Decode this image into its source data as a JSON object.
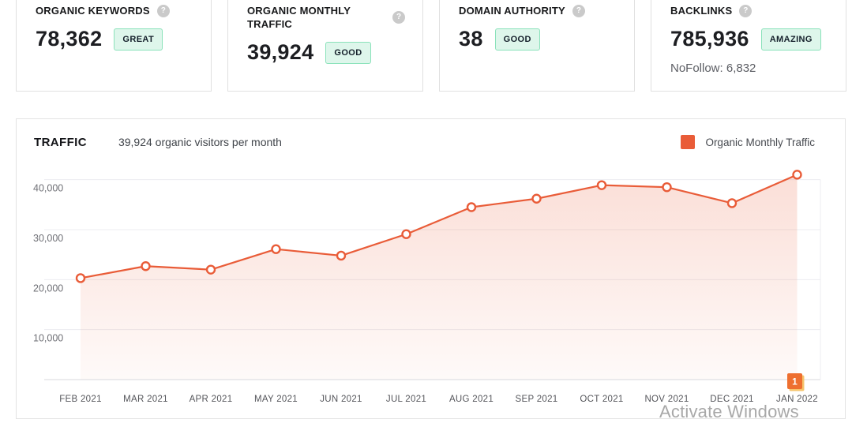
{
  "cards": [
    {
      "title": "ORGANIC KEYWORDS",
      "value": "78,362",
      "badge": "GREAT",
      "help": "?"
    },
    {
      "title": "ORGANIC MONTHLY TRAFFIC",
      "value": "39,924",
      "badge": "GOOD",
      "help": "?"
    },
    {
      "title": "DOMAIN AUTHORITY",
      "value": "38",
      "badge": "GOOD",
      "help": "?"
    },
    {
      "title": "BACKLINKS",
      "value": "785,936",
      "badge": "AMAZING",
      "help": "?",
      "nofollow": "NoFollow: 6,832"
    }
  ],
  "traffic_panel": {
    "title": "TRAFFIC",
    "subtitle": "39,924 organic visitors per month",
    "legend_label": "Organic Monthly Traffic"
  },
  "chart_data": {
    "type": "area",
    "title": "TRAFFIC",
    "categories": [
      "FEB 2021",
      "MAR 2021",
      "APR 2021",
      "MAY 2021",
      "JUN 2021",
      "JUL 2021",
      "AUG 2021",
      "SEP 2021",
      "OCT 2021",
      "NOV 2021",
      "DEC 2021",
      "JAN 2022"
    ],
    "series": [
      {
        "name": "Organic Monthly Traffic",
        "values": [
          20300,
          22700,
          22000,
          26100,
          24800,
          29100,
          34500,
          36200,
          38900,
          38500,
          35300,
          41000
        ]
      }
    ],
    "ylim": [
      0,
      43000
    ],
    "yticks": [
      10000,
      20000,
      30000,
      40000
    ],
    "ytick_labels": [
      "10,000",
      "20,000",
      "30,000",
      "40,000"
    ],
    "grid": true,
    "legend_position": "top-right",
    "annotation": {
      "label": "1",
      "category": "JAN 2022",
      "position": "bottom"
    },
    "colors": {
      "line": "#e95c38",
      "marker_fill": "#ffffff",
      "area_top": "rgba(233,92,56,0.20)",
      "area_bottom": "rgba(233,92,56,0.03)",
      "annotation_bg": "#ee6f30",
      "annotation_shadow": "#f6c46c",
      "gridline": "#ececf1",
      "axis_line": "#d8d9de",
      "ytick_color": "#6f7076",
      "xtick_color": "#54555a"
    }
  },
  "watermark": "Activate Windows",
  "ui_colors": {
    "badge_bg": "#def6eb",
    "badge_border": "#8ae2ba",
    "card_border": "#e0e0e0",
    "accent_orange": "#e95c38"
  }
}
